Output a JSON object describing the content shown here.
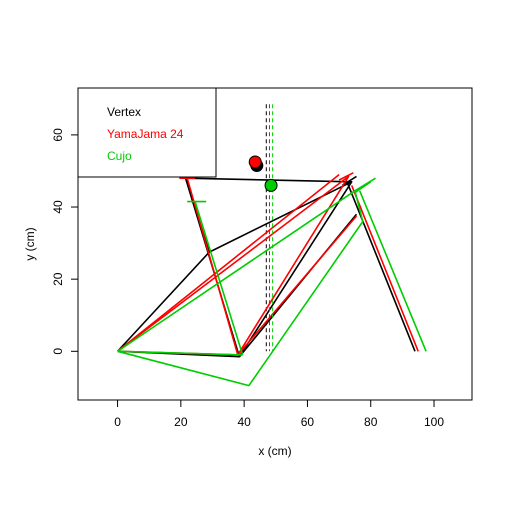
{
  "chart_data": {
    "type": "line",
    "title": "",
    "xlabel": "x (cm)",
    "ylabel": "y (cm)",
    "xlim": [
      -12.5,
      112
    ],
    "ylim": [
      -13.5,
      73
    ],
    "xticks": [
      0,
      20,
      40,
      60,
      80,
      100
    ],
    "yticks": [
      0,
      20,
      40,
      60
    ],
    "grid": false,
    "legend_position": "top-left",
    "series": [
      {
        "name": "Vertex",
        "color": "#000000",
        "frame": [
          [
            0,
            0
          ],
          [
            29,
            27.5
          ],
          [
            74,
            47
          ],
          [
            38.5,
            -1.5
          ],
          [
            0,
            0
          ]
        ],
        "seatstay": [
          [
            38.5,
            -1.5
          ],
          [
            75.5,
            38
          ]
        ],
        "down_seat_rear": [
          [
            29,
            27.5
          ],
          [
            21.5,
            48
          ],
          [
            74,
            47
          ]
        ],
        "seat_tube": [
          [
            38.5,
            -1.5
          ],
          [
            21.5,
            48
          ]
        ],
        "seat_bar": [
          [
            20,
            48
          ],
          [
            24.5,
            48
          ]
        ],
        "head_tube_upper": [
          [
            71,
            46
          ],
          [
            75.5,
            48.5
          ]
        ],
        "fork": [
          [
            72.5,
            47
          ],
          [
            94,
            0
          ]
        ],
        "saddle_point": [
          44,
          51.5
        ],
        "vline_x": 47
      },
      {
        "name": "YamaJama 24",
        "color": "#ff0000",
        "frame": [
          [
            0,
            0
          ],
          [
            73,
            48.5
          ],
          [
            38,
            -1
          ],
          [
            0,
            0
          ]
        ],
        "seatstay": [
          [
            38,
            -1
          ],
          [
            75.5,
            37.5
          ]
        ],
        "down_seat_rear": [
          [
            0,
            0
          ],
          [
            70,
            49
          ]
        ],
        "seat_tube": [
          [
            38,
            -1
          ],
          [
            22,
            48
          ]
        ],
        "seat_bar": [
          [
            19.5,
            48
          ],
          [
            24.5,
            48
          ]
        ],
        "head_tube_upper": [
          [
            70,
            47.5
          ],
          [
            74.5,
            49.5
          ]
        ],
        "fork": [
          [
            74,
            46
          ],
          [
            95,
            0
          ]
        ],
        "saddle_point": [
          43.5,
          52.5
        ],
        "vline_x": 48
      },
      {
        "name": "Cujo",
        "color": "#00cd00",
        "frame": [
          [
            0,
            0
          ],
          [
            41.5,
            -9.5
          ],
          [
            77.5,
            36
          ],
          [
            75,
            44.5
          ],
          [
            0,
            0
          ]
        ],
        "seatstay": [
          [
            0,
            0
          ],
          [
            39.5,
            -1
          ]
        ],
        "down_seat_rear": [
          [
            75,
            44.5
          ],
          [
            81.5,
            48
          ]
        ],
        "seat_tube": [
          [
            39.5,
            -1
          ],
          [
            24.5,
            41.5
          ]
        ],
        "seat_bar": [
          [
            22,
            41.5
          ],
          [
            28,
            41.5
          ]
        ],
        "head_tube_upper": [
          [
            75,
            44
          ],
          [
            80,
            47
          ]
        ],
        "fork": [
          [
            76.5,
            44.5
          ],
          [
            97.5,
            0
          ]
        ],
        "saddle_point": [
          48.5,
          46
        ],
        "vline_x": 49
      }
    ]
  }
}
